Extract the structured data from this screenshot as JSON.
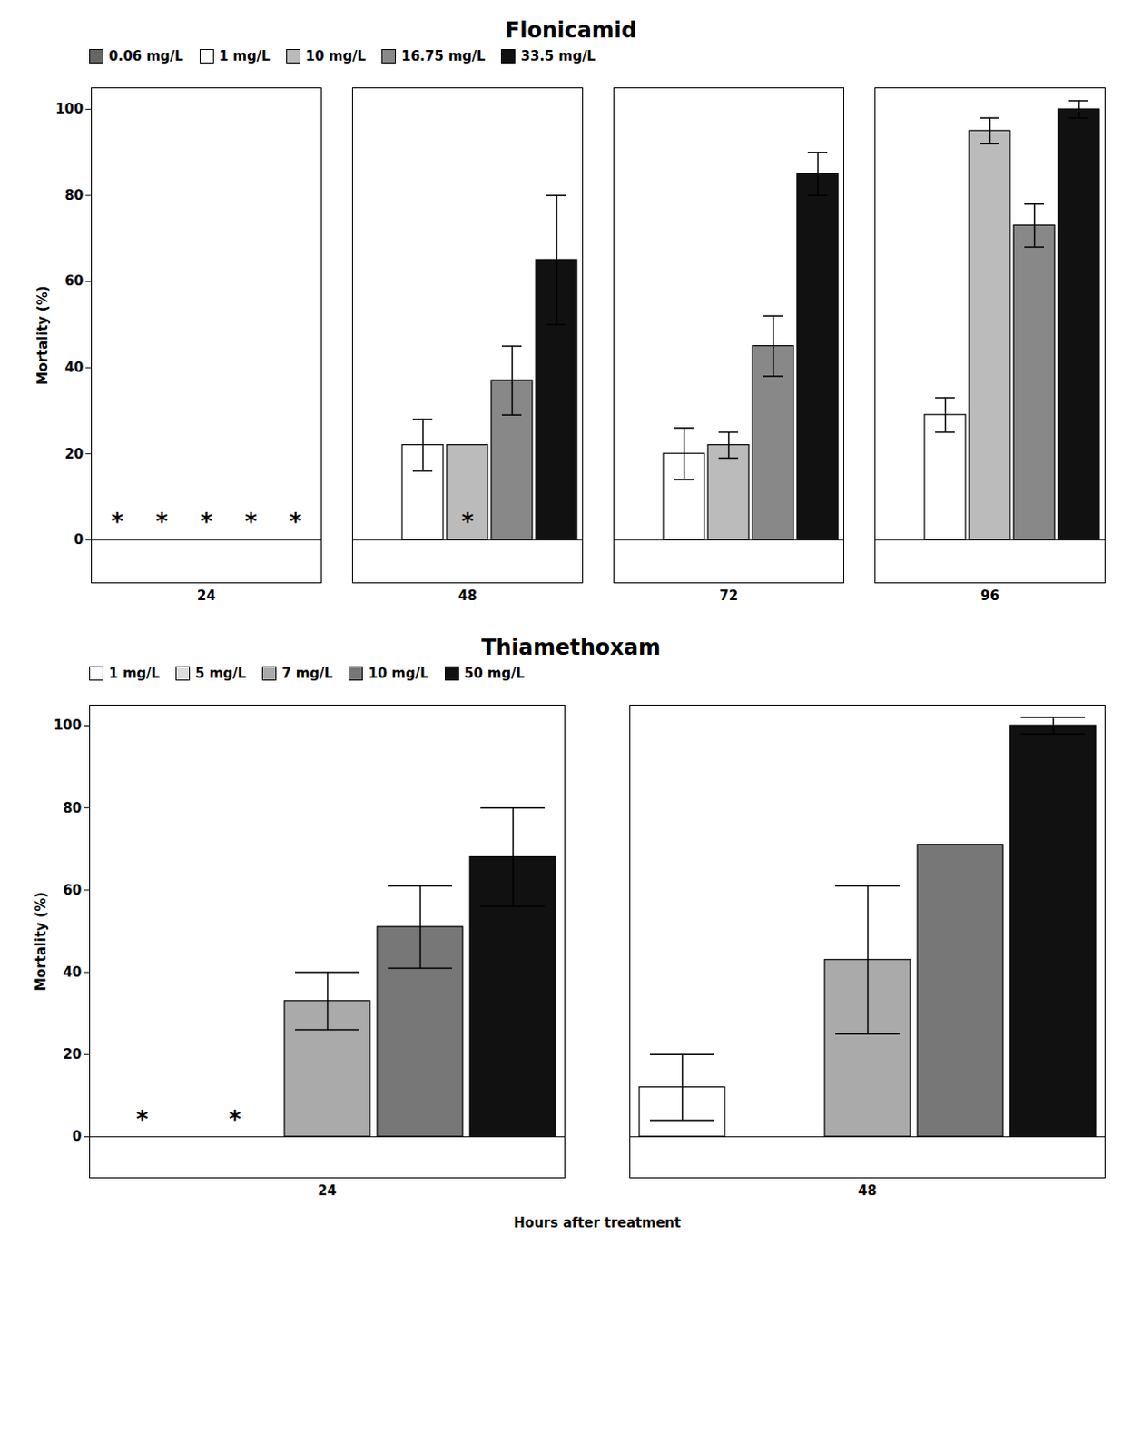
{
  "chart_data": [
    {
      "type": "bar",
      "title": "Flonicamid",
      "categories": [
        24,
        48,
        72,
        96
      ],
      "series": [
        {
          "name": "0.06 mg/L",
          "color": "#666666",
          "values": [
            0,
            0,
            0,
            0
          ],
          "errors": [
            0,
            0,
            0,
            0
          ]
        },
        {
          "name": "1 mg/L",
          "color": "#ffffff",
          "values": [
            0,
            22,
            20,
            29
          ],
          "errors": [
            0,
            6,
            6,
            4
          ]
        },
        {
          "name": "10 mg/L",
          "color": "#bbbbbb",
          "values": [
            0,
            22,
            22,
            95
          ],
          "errors": [
            0,
            0,
            3,
            3
          ]
        },
        {
          "name": "16.75 mg/L",
          "color": "#888888",
          "values": [
            0,
            37,
            45,
            73
          ],
          "errors": [
            0,
            8,
            7,
            5
          ]
        },
        {
          "name": "33.5 mg/L",
          "color": "#111111",
          "values": [
            0,
            65,
            85,
            100
          ],
          "errors": [
            0,
            15,
            5,
            2
          ]
        }
      ],
      "annotations": [
        {
          "text": "*",
          "x": 24,
          "series": "0.06 mg/L",
          "y": 4
        },
        {
          "text": "*",
          "x": 24,
          "series": "1 mg/L",
          "y": 4
        },
        {
          "text": "*",
          "x": 24,
          "series": "10 mg/L",
          "y": 4
        },
        {
          "text": "*",
          "x": 48,
          "series": "10 mg/L",
          "y": 4
        },
        {
          "text": "*",
          "x": 24,
          "series": "16.75 mg/L",
          "y": 4
        },
        {
          "text": "*",
          "x": 24,
          "series": "33.5 mg/L",
          "y": 4
        }
      ],
      "ylabel": "Mortality (%)",
      "ylim": [
        -10,
        105
      ],
      "yticks": [
        0,
        20,
        40,
        60,
        80,
        100
      ],
      "legend": "upper left"
    },
    {
      "type": "bar",
      "title": "Thiamethoxam",
      "categories": [
        24,
        48
      ],
      "series": [
        {
          "name": "1 mg/L",
          "color": "#ffffff",
          "values": [
            0,
            12
          ],
          "errors": [
            0,
            8
          ]
        },
        {
          "name": "5 mg/L",
          "color": "#dddddd",
          "values": [
            0,
            0
          ],
          "errors": [
            0,
            0
          ]
        },
        {
          "name": "7 mg/L",
          "color": "#aaaaaa",
          "values": [
            33,
            43
          ],
          "errors": [
            7,
            18
          ]
        },
        {
          "name": "10 mg/L",
          "color": "#777777",
          "values": [
            51,
            71
          ],
          "errors": [
            10,
            0
          ]
        },
        {
          "name": "50 mg/L",
          "color": "#111111",
          "values": [
            68,
            100
          ],
          "errors": [
            12,
            2
          ]
        }
      ],
      "annotations": [
        {
          "text": "*",
          "x": 24,
          "series": "1 mg/L",
          "y": 4
        },
        {
          "text": "*",
          "x": 24,
          "series": "5 mg/L",
          "y": 4
        }
      ],
      "ylabel": "Mortality (%)",
      "xlabel": "Hours after treatment",
      "ylim": [
        -10,
        105
      ],
      "yticks": [
        0,
        20,
        40,
        60,
        80,
        100
      ],
      "legend": "upper left"
    }
  ]
}
